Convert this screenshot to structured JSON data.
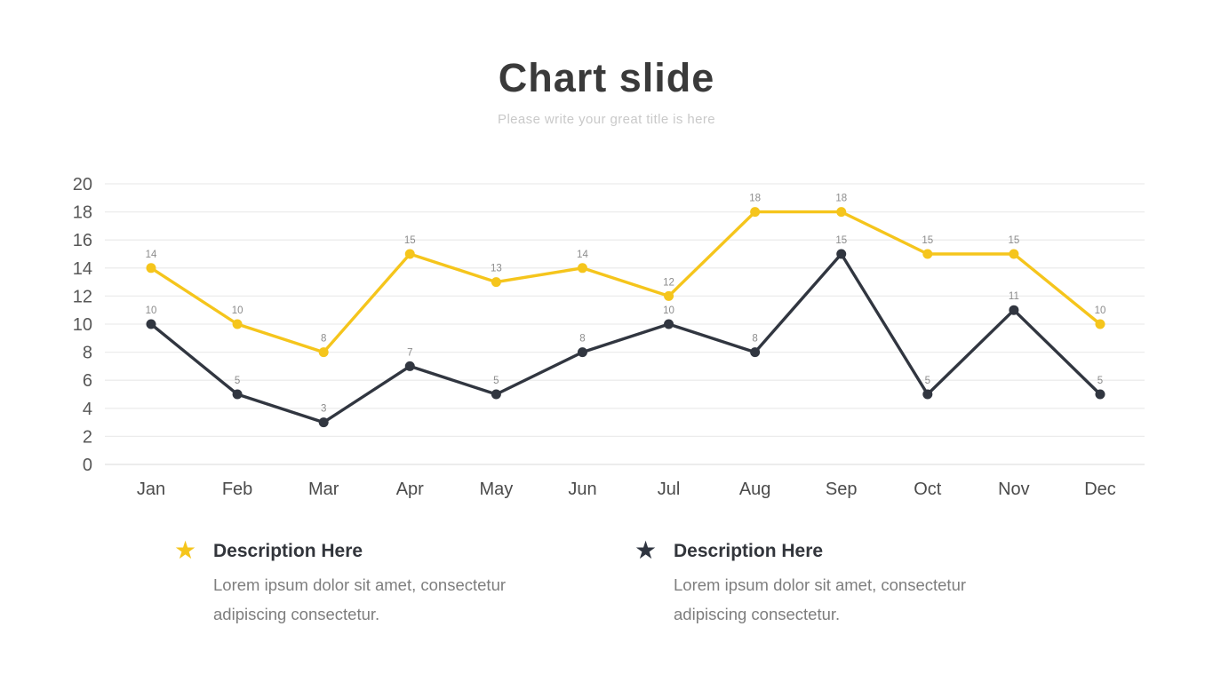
{
  "slide": {
    "title": "Chart slide",
    "subtitle": "Please write your great title is here"
  },
  "chart_data": {
    "type": "line",
    "title": "Chart slide",
    "categories": [
      "Jan",
      "Feb",
      "Mar",
      "Apr",
      "May",
      "Jun",
      "Jul",
      "Aug",
      "Sep",
      "Oct",
      "Nov",
      "Dec"
    ],
    "series": [
      {
        "name": "Description Here",
        "color": "#F5C51C",
        "values": [
          14,
          10,
          8,
          15,
          13,
          14,
          12,
          18,
          18,
          15,
          15,
          10
        ]
      },
      {
        "name": "Description Here",
        "color": "#313640",
        "values": [
          10,
          5,
          3,
          7,
          5,
          8,
          10,
          8,
          15,
          5,
          11,
          5
        ]
      }
    ],
    "ylim": [
      0,
      20
    ],
    "yticks": [
      0,
      2,
      4,
      6,
      8,
      10,
      12,
      14,
      16,
      18,
      20
    ],
    "grid": true,
    "data_labels": true,
    "legend_position": "bottom",
    "grid_color": "#ececec",
    "axis_line_color": "#e0e0e0",
    "tick_label_color": "#575757",
    "x_label_color": "#4b4b4b",
    "data_label_color": "#8c8c8c"
  },
  "legend": {
    "items": [
      {
        "icon": "star",
        "color": "#F5C51C",
        "title": "Description Here",
        "description": "Lorem ipsum dolor sit amet, consectetur adipiscing consectetur."
      },
      {
        "icon": "star",
        "color": "#2F3540",
        "title": "Description Here",
        "description": "Lorem ipsum dolor sit amet, consectetur adipiscing consectetur."
      }
    ]
  }
}
